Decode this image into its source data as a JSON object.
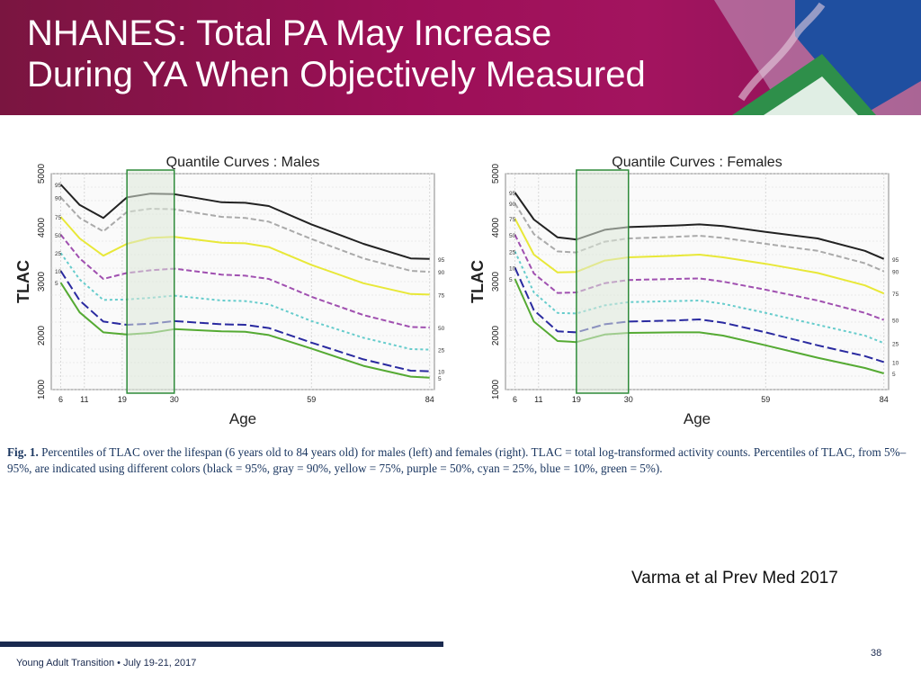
{
  "slide": {
    "title_line1": "NHANES: Total PA May Increase",
    "title_line2": "During YA When Objectively Measured",
    "caption_label": "Fig. 1.",
    "caption_text": "Percentiles of TLAC over the lifespan (6 years old to 84 years old) for males (left) and females (right). TLAC = total log-transformed activity counts. Percentiles of TLAC, from 5%–95%, are indicated using different colors (black = 95%, gray = 90%, yellow = 75%, purple = 50%, cyan = 25%, blue = 10%, green = 5%).",
    "citation": "Varma et al Prev Med 2017",
    "footer": "Young Adult Transition • July 19-21, 2017",
    "page_number": "38"
  },
  "colors": {
    "header_bg": "#9c0f57",
    "footer_bar": "#1a2a4f",
    "highlight_fill": "#dce8d8",
    "highlight_stroke": "#2e8b3a"
  },
  "chart_data": [
    {
      "type": "line",
      "title": "Quantile Curves :  Males",
      "xlabel": "Age",
      "ylabel": "TLAC",
      "xlim": [
        4,
        85
      ],
      "ylim": [
        1000,
        5000
      ],
      "x_ticks": [
        6,
        11,
        19,
        30,
        59,
        84
      ],
      "y_ticks": [
        1000,
        2000,
        3000,
        4000,
        5000
      ],
      "grid": true,
      "highlight_range": [
        20,
        30
      ],
      "series": [
        {
          "name": "95",
          "color": "#222222",
          "dash": "",
          "x": [
            6,
            10,
            15,
            20,
            25,
            30,
            40,
            45,
            50,
            59,
            70,
            80,
            84
          ],
          "values": [
            4800,
            4420,
            4180,
            4560,
            4630,
            4620,
            4470,
            4460,
            4400,
            4060,
            3700,
            3430,
            3420
          ]
        },
        {
          "name": "90",
          "color": "#aaaaaa",
          "dash": "6 3",
          "x": [
            6,
            10,
            15,
            20,
            25,
            30,
            40,
            45,
            50,
            59,
            70,
            80,
            84
          ],
          "values": [
            4560,
            4180,
            3930,
            4290,
            4350,
            4340,
            4200,
            4180,
            4110,
            3790,
            3430,
            3200,
            3180
          ]
        },
        {
          "name": "75",
          "color": "#e8e838",
          "dash": "",
          "x": [
            6,
            10,
            15,
            20,
            25,
            30,
            40,
            45,
            50,
            59,
            70,
            80,
            84
          ],
          "values": [
            4200,
            3800,
            3480,
            3700,
            3810,
            3830,
            3720,
            3710,
            3640,
            3310,
            2970,
            2770,
            2760
          ]
        },
        {
          "name": "50",
          "color": "#a050b0",
          "dash": "6 3",
          "x": [
            6,
            10,
            15,
            20,
            25,
            30,
            40,
            45,
            50,
            59,
            70,
            80,
            84
          ],
          "values": [
            3870,
            3430,
            3050,
            3160,
            3210,
            3240,
            3130,
            3110,
            3050,
            2720,
            2380,
            2160,
            2150
          ]
        },
        {
          "name": "25",
          "color": "#66cccc",
          "dash": "3 3",
          "x": [
            6,
            10,
            15,
            20,
            25,
            30,
            40,
            45,
            50,
            59,
            70,
            80,
            84
          ],
          "values": [
            3530,
            3040,
            2660,
            2670,
            2700,
            2740,
            2650,
            2640,
            2580,
            2270,
            1960,
            1750,
            1740
          ]
        },
        {
          "name": "10",
          "color": "#2a2aa0",
          "dash": "10 4",
          "x": [
            6,
            10,
            15,
            20,
            25,
            30,
            40,
            45,
            50,
            59,
            70,
            80,
            84
          ],
          "values": [
            3200,
            2650,
            2260,
            2200,
            2220,
            2270,
            2210,
            2200,
            2140,
            1870,
            1560,
            1350,
            1340
          ]
        },
        {
          "name": "5",
          "color": "#55aa33",
          "dash": "",
          "x": [
            6,
            10,
            15,
            20,
            25,
            30,
            40,
            45,
            50,
            59,
            70,
            80,
            84
          ],
          "values": [
            2980,
            2430,
            2060,
            2020,
            2050,
            2120,
            2080,
            2070,
            2010,
            1760,
            1440,
            1240,
            1220
          ]
        }
      ]
    },
    {
      "type": "line",
      "title": "Quantile Curves :  Females",
      "xlabel": "Age",
      "ylabel": "TLAC",
      "xlim": [
        4,
        85
      ],
      "ylim": [
        1000,
        5000
      ],
      "x_ticks": [
        6,
        11,
        19,
        30,
        59,
        84
      ],
      "y_ticks": [
        1000,
        2000,
        3000,
        4000,
        5000
      ],
      "grid": true,
      "highlight_range": [
        19,
        30
      ],
      "series": [
        {
          "name": "95",
          "color": "#222222",
          "dash": "",
          "x": [
            6,
            10,
            15,
            19,
            25,
            30,
            40,
            45,
            50,
            59,
            70,
            80,
            84
          ],
          "values": [
            4650,
            4150,
            3820,
            3780,
            3960,
            4010,
            4040,
            4060,
            4030,
            3920,
            3800,
            3570,
            3420
          ]
        },
        {
          "name": "90",
          "color": "#aaaaaa",
          "dash": "6 3",
          "x": [
            6,
            10,
            15,
            19,
            25,
            30,
            40,
            45,
            50,
            59,
            70,
            80,
            84
          ],
          "values": [
            4450,
            3880,
            3560,
            3540,
            3740,
            3800,
            3830,
            3850,
            3810,
            3700,
            3570,
            3340,
            3190
          ]
        },
        {
          "name": "75",
          "color": "#e8e838",
          "dash": "",
          "x": [
            6,
            10,
            15,
            19,
            25,
            30,
            40,
            45,
            50,
            59,
            70,
            80,
            84
          ],
          "values": [
            4170,
            3500,
            3170,
            3180,
            3390,
            3450,
            3480,
            3500,
            3450,
            3330,
            3160,
            2930,
            2780
          ]
        },
        {
          "name": "50",
          "color": "#a050b0",
          "dash": "6 3",
          "x": [
            6,
            10,
            15,
            19,
            25,
            30,
            40,
            45,
            50,
            59,
            70,
            80,
            84
          ],
          "values": [
            3870,
            3150,
            2790,
            2800,
            2970,
            3030,
            3050,
            3060,
            3000,
            2850,
            2650,
            2420,
            2290
          ]
        },
        {
          "name": "25",
          "color": "#66cccc",
          "dash": "3 3",
          "x": [
            6,
            10,
            15,
            19,
            25,
            30,
            40,
            45,
            50,
            59,
            70,
            80,
            84
          ],
          "values": [
            3560,
            2800,
            2420,
            2410,
            2560,
            2620,
            2640,
            2650,
            2590,
            2420,
            2200,
            2000,
            1860
          ]
        },
        {
          "name": "10",
          "color": "#2a2aa0",
          "dash": "10 4",
          "x": [
            6,
            10,
            15,
            19,
            25,
            30,
            40,
            45,
            50,
            59,
            70,
            80,
            84
          ],
          "values": [
            3260,
            2470,
            2080,
            2060,
            2210,
            2260,
            2280,
            2300,
            2240,
            2060,
            1820,
            1620,
            1510
          ]
        },
        {
          "name": "5",
          "color": "#55aa33",
          "dash": "",
          "x": [
            6,
            10,
            15,
            19,
            25,
            30,
            40,
            45,
            50,
            59,
            70,
            80,
            84
          ],
          "values": [
            3050,
            2260,
            1900,
            1880,
            2020,
            2050,
            2060,
            2060,
            2000,
            1820,
            1590,
            1400,
            1300
          ]
        }
      ]
    }
  ]
}
